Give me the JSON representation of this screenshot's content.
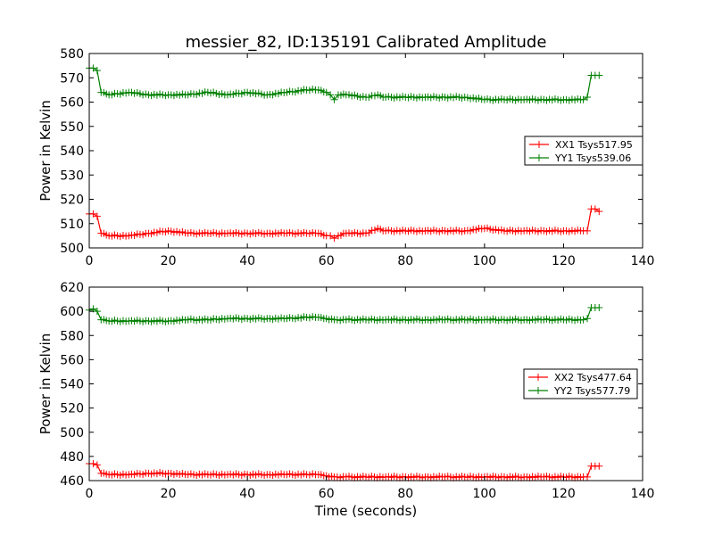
{
  "title": "messier_82, ID:135191 Calibrated Amplitude",
  "chart_data": [
    {
      "type": "line",
      "ylabel": "Power in Kelvin",
      "xlabel": "",
      "xlim": [
        0,
        140
      ],
      "ylim": [
        500,
        580
      ],
      "xticks": [
        0,
        20,
        40,
        60,
        80,
        100,
        120,
        140
      ],
      "yticks": [
        500,
        510,
        520,
        530,
        540,
        550,
        560,
        570,
        580
      ],
      "legend_position": "center-right",
      "series": [
        {
          "name": "XX1 Tsys517.95",
          "color": "#ff0000",
          "x": [
            0,
            1,
            2,
            3,
            5,
            10,
            15,
            20,
            25,
            30,
            35,
            40,
            45,
            50,
            55,
            58,
            60,
            61,
            62,
            63,
            65,
            70,
            73,
            75,
            80,
            85,
            90,
            95,
            100,
            105,
            110,
            115,
            120,
            125,
            126,
            127,
            128,
            129
          ],
          "y": [
            514,
            514,
            513,
            506,
            505,
            505,
            506,
            507,
            506,
            506,
            506,
            506,
            506,
            506,
            506,
            506,
            505,
            505,
            504,
            505,
            506,
            506,
            508,
            507,
            507,
            507,
            507,
            507,
            508,
            507,
            507,
            507,
            507,
            507,
            507,
            516,
            516,
            515
          ]
        },
        {
          "name": "YY1 Tsys539.06",
          "color": "#008000",
          "x": [
            0,
            1,
            2,
            3,
            5,
            10,
            15,
            20,
            25,
            30,
            35,
            40,
            45,
            50,
            55,
            58,
            60,
            61,
            62,
            63,
            65,
            70,
            73,
            75,
            80,
            85,
            90,
            95,
            100,
            105,
            110,
            115,
            120,
            125,
            126,
            127,
            128,
            129
          ],
          "y": [
            574,
            574,
            573,
            564,
            563,
            564,
            563,
            563,
            563,
            564,
            563,
            564,
            563,
            564,
            565,
            565,
            564,
            563,
            561,
            563,
            563,
            562,
            563,
            562,
            562,
            562,
            562,
            562,
            561,
            561,
            561,
            561,
            561,
            561,
            562,
            571,
            571,
            571
          ]
        }
      ]
    },
    {
      "type": "line",
      "ylabel": "Power in Kelvin",
      "xlabel": "Time (seconds)",
      "xlim": [
        0,
        140
      ],
      "ylim": [
        460,
        620
      ],
      "xticks": [
        0,
        20,
        40,
        60,
        80,
        100,
        120,
        140
      ],
      "yticks": [
        460,
        480,
        500,
        520,
        540,
        560,
        580,
        600,
        620
      ],
      "legend_position": "center-right",
      "series": [
        {
          "name": "XX2 Tsys477.64",
          "color": "#ff0000",
          "x": [
            0,
            1,
            2,
            3,
            5,
            10,
            15,
            20,
            25,
            30,
            35,
            40,
            45,
            50,
            55,
            58,
            60,
            62,
            65,
            70,
            75,
            80,
            85,
            90,
            95,
            100,
            105,
            110,
            115,
            120,
            125,
            126,
            127,
            128,
            129
          ],
          "y": [
            474,
            474,
            473,
            466,
            465,
            465,
            466,
            466,
            465,
            465,
            465,
            465,
            465,
            465,
            465,
            465,
            464,
            463,
            463,
            463,
            463,
            463,
            463,
            463,
            463,
            463,
            463,
            463,
            463,
            463,
            463,
            463,
            472,
            472,
            472
          ]
        },
        {
          "name": "YY2 Tsys577.79",
          "color": "#008000",
          "x": [
            0,
            1,
            2,
            3,
            5,
            10,
            15,
            20,
            25,
            30,
            35,
            40,
            45,
            50,
            55,
            58,
            60,
            62,
            65,
            70,
            75,
            80,
            85,
            90,
            95,
            100,
            105,
            110,
            115,
            120,
            125,
            126,
            127,
            128,
            129
          ],
          "y": [
            601,
            602,
            600,
            593,
            592,
            592,
            592,
            592,
            593,
            593,
            594,
            594,
            594,
            594,
            595,
            595,
            594,
            593,
            593,
            593,
            593,
            593,
            593,
            593,
            593,
            593,
            593,
            593,
            593,
            593,
            593,
            594,
            603,
            603,
            603
          ]
        }
      ]
    }
  ]
}
